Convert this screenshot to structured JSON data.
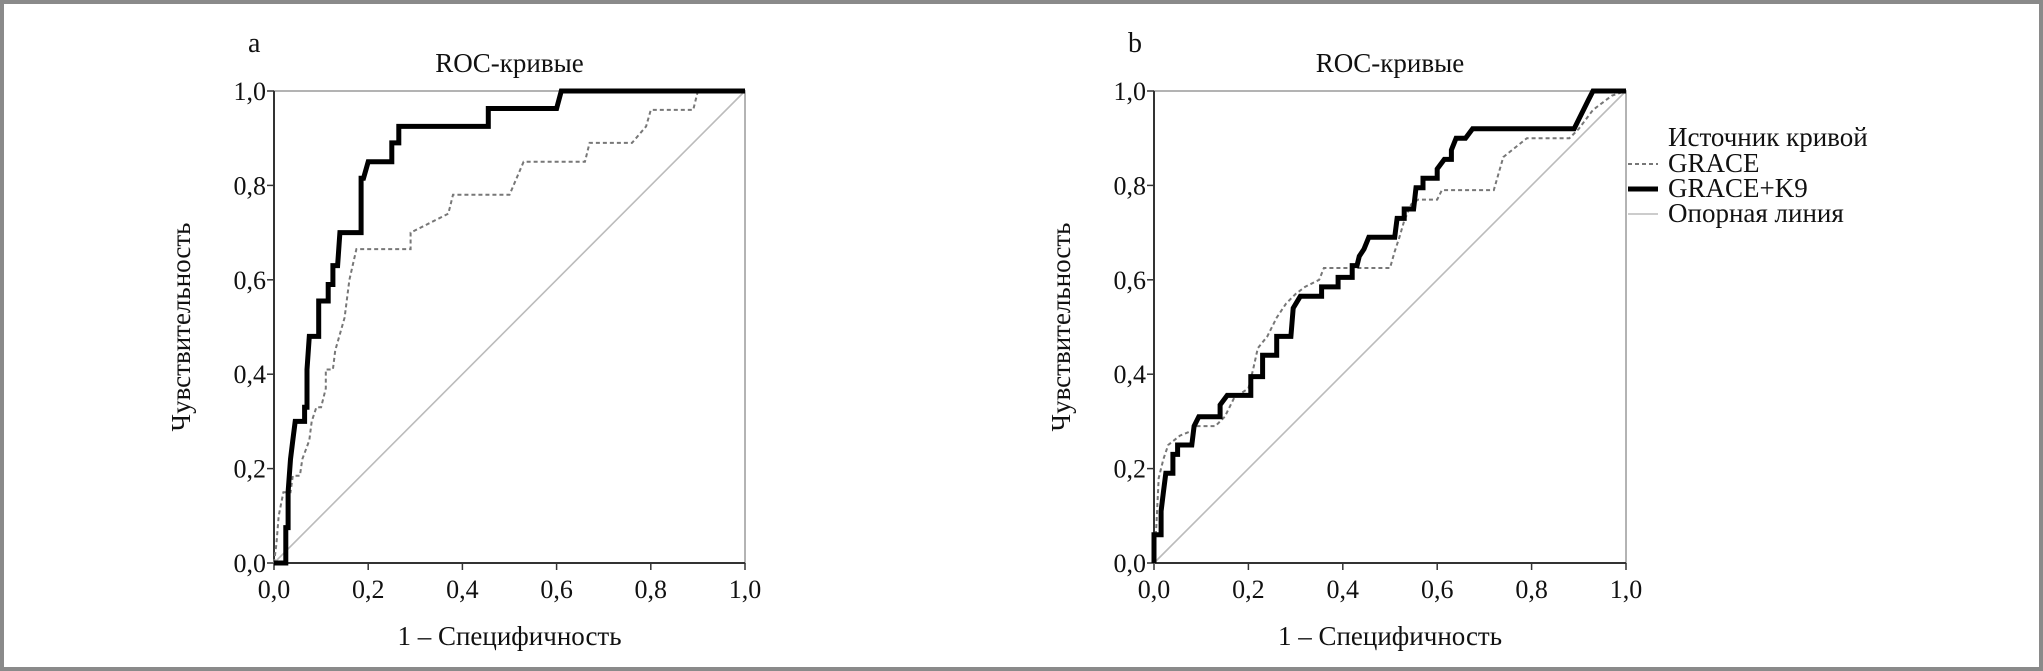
{
  "chart_data": [
    {
      "panel_label": "a",
      "type": "line",
      "title": "ROC-кривые",
      "xlabel": "1 – Специфичность",
      "ylabel": "Чувствительность",
      "xlim": [
        0,
        1
      ],
      "ylim": [
        0,
        1
      ],
      "xticks": [
        "0,0",
        "0,2",
        "0,4",
        "0,6",
        "0,8",
        "1,0"
      ],
      "yticks": [
        "0,0",
        "0,2",
        "0,4",
        "0,6",
        "0,8",
        "1,0"
      ],
      "grid": false,
      "series": [
        {
          "name": "GRACE",
          "style": "dashed",
          "color": "#777777",
          "points": [
            [
              0,
              0
            ],
            [
              0.005,
              0.04
            ],
            [
              0.01,
              0.1
            ],
            [
              0.02,
              0.15
            ],
            [
              0.035,
              0.15
            ],
            [
              0.04,
              0.185
            ],
            [
              0.055,
              0.185
            ],
            [
              0.06,
              0.22
            ],
            [
              0.075,
              0.26
            ],
            [
              0.08,
              0.3
            ],
            [
              0.09,
              0.33
            ],
            [
              0.1,
              0.33
            ],
            [
              0.11,
              0.37
            ],
            [
              0.11,
              0.41
            ],
            [
              0.125,
              0.41
            ],
            [
              0.13,
              0.45
            ],
            [
              0.15,
              0.52
            ],
            [
              0.16,
              0.6
            ],
            [
              0.175,
              0.665
            ],
            [
              0.29,
              0.665
            ],
            [
              0.29,
              0.7
            ],
            [
              0.33,
              0.72
            ],
            [
              0.37,
              0.74
            ],
            [
              0.38,
              0.78
            ],
            [
              0.5,
              0.78
            ],
            [
              0.53,
              0.85
            ],
            [
              0.66,
              0.85
            ],
            [
              0.67,
              0.89
            ],
            [
              0.76,
              0.89
            ],
            [
              0.79,
              0.925
            ],
            [
              0.8,
              0.96
            ],
            [
              0.89,
              0.96
            ],
            [
              0.9,
              1
            ],
            [
              1,
              1
            ]
          ]
        },
        {
          "name": "GRACE+K9",
          "style": "solid-thick",
          "color": "#000000",
          "points": [
            [
              0,
              0
            ],
            [
              0.025,
              0
            ],
            [
              0.025,
              0.075
            ],
            [
              0.03,
              0.075
            ],
            [
              0.03,
              0.15
            ],
            [
              0.035,
              0.22
            ],
            [
              0.04,
              0.26
            ],
            [
              0.045,
              0.3
            ],
            [
              0.065,
              0.3
            ],
            [
              0.065,
              0.33
            ],
            [
              0.07,
              0.33
            ],
            [
              0.07,
              0.41
            ],
            [
              0.075,
              0.48
            ],
            [
              0.095,
              0.48
            ],
            [
              0.095,
              0.555
            ],
            [
              0.115,
              0.555
            ],
            [
              0.115,
              0.59
            ],
            [
              0.125,
              0.59
            ],
            [
              0.125,
              0.63
            ],
            [
              0.135,
              0.63
            ],
            [
              0.14,
              0.7
            ],
            [
              0.185,
              0.7
            ],
            [
              0.185,
              0.815
            ],
            [
              0.19,
              0.815
            ],
            [
              0.2,
              0.85
            ],
            [
              0.25,
              0.85
            ],
            [
              0.25,
              0.89
            ],
            [
              0.265,
              0.89
            ],
            [
              0.265,
              0.925
            ],
            [
              0.455,
              0.925
            ],
            [
              0.455,
              0.963
            ],
            [
              0.6,
              0.963
            ],
            [
              0.61,
              1
            ],
            [
              1,
              1
            ]
          ]
        },
        {
          "name": "Опорная линия",
          "style": "solid-thin",
          "color": "#bbbbbb",
          "points": [
            [
              0,
              0
            ],
            [
              1,
              1
            ]
          ]
        }
      ]
    },
    {
      "panel_label": "b",
      "type": "line",
      "title": "ROC-кривые",
      "xlabel": "1 – Специфичность",
      "ylabel": "Чувствительность",
      "xlim": [
        0,
        1
      ],
      "ylim": [
        0,
        1
      ],
      "xticks": [
        "0,0",
        "0,2",
        "0,4",
        "0,6",
        "0,8",
        "1,0"
      ],
      "yticks": [
        "0,0",
        "0,2",
        "0,4",
        "0,6",
        "0,8",
        "1,0"
      ],
      "grid": false,
      "legend": {
        "title": "Источник кривой",
        "placement": "right"
      },
      "series": [
        {
          "name": "GRACE",
          "style": "dashed",
          "color": "#777777",
          "points": [
            [
              0,
              0
            ],
            [
              0.005,
              0.08
            ],
            [
              0.01,
              0.18
            ],
            [
              0.02,
              0.22
            ],
            [
              0.03,
              0.25
            ],
            [
              0.055,
              0.27
            ],
            [
              0.08,
              0.28
            ],
            [
              0.09,
              0.29
            ],
            [
              0.13,
              0.29
            ],
            [
              0.15,
              0.31
            ],
            [
              0.17,
              0.35
            ],
            [
              0.2,
              0.37
            ],
            [
              0.21,
              0.41
            ],
            [
              0.22,
              0.455
            ],
            [
              0.24,
              0.48
            ],
            [
              0.26,
              0.52
            ],
            [
              0.28,
              0.55
            ],
            [
              0.3,
              0.57
            ],
            [
              0.32,
              0.585
            ],
            [
              0.35,
              0.6
            ],
            [
              0.36,
              0.625
            ],
            [
              0.5,
              0.625
            ],
            [
              0.51,
              0.66
            ],
            [
              0.52,
              0.69
            ],
            [
              0.53,
              0.725
            ],
            [
              0.545,
              0.76
            ],
            [
              0.56,
              0.77
            ],
            [
              0.6,
              0.77
            ],
            [
              0.61,
              0.79
            ],
            [
              0.72,
              0.79
            ],
            [
              0.74,
              0.86
            ],
            [
              0.79,
              0.9
            ],
            [
              0.88,
              0.9
            ],
            [
              0.9,
              0.92
            ],
            [
              0.93,
              0.96
            ],
            [
              0.97,
              0.99
            ],
            [
              1,
              1
            ]
          ]
        },
        {
          "name": "GRACE+K9",
          "style": "solid-thick",
          "color": "#000000",
          "points": [
            [
              0,
              0
            ],
            [
              0,
              0.06
            ],
            [
              0.015,
              0.06
            ],
            [
              0.015,
              0.11
            ],
            [
              0.02,
              0.15
            ],
            [
              0.025,
              0.19
            ],
            [
              0.04,
              0.19
            ],
            [
              0.04,
              0.23
            ],
            [
              0.05,
              0.23
            ],
            [
              0.05,
              0.25
            ],
            [
              0.08,
              0.25
            ],
            [
              0.085,
              0.29
            ],
            [
              0.095,
              0.31
            ],
            [
              0.14,
              0.31
            ],
            [
              0.14,
              0.335
            ],
            [
              0.155,
              0.355
            ],
            [
              0.205,
              0.355
            ],
            [
              0.205,
              0.395
            ],
            [
              0.23,
              0.395
            ],
            [
              0.23,
              0.44
            ],
            [
              0.26,
              0.44
            ],
            [
              0.26,
              0.48
            ],
            [
              0.29,
              0.48
            ],
            [
              0.295,
              0.54
            ],
            [
              0.31,
              0.565
            ],
            [
              0.355,
              0.565
            ],
            [
              0.355,
              0.585
            ],
            [
              0.39,
              0.585
            ],
            [
              0.39,
              0.605
            ],
            [
              0.42,
              0.605
            ],
            [
              0.42,
              0.63
            ],
            [
              0.43,
              0.63
            ],
            [
              0.435,
              0.65
            ],
            [
              0.445,
              0.665
            ],
            [
              0.455,
              0.69
            ],
            [
              0.51,
              0.69
            ],
            [
              0.515,
              0.73
            ],
            [
              0.53,
              0.73
            ],
            [
              0.53,
              0.75
            ],
            [
              0.55,
              0.75
            ],
            [
              0.555,
              0.795
            ],
            [
              0.57,
              0.795
            ],
            [
              0.57,
              0.815
            ],
            [
              0.6,
              0.815
            ],
            [
              0.6,
              0.835
            ],
            [
              0.615,
              0.855
            ],
            [
              0.63,
              0.855
            ],
            [
              0.63,
              0.875
            ],
            [
              0.64,
              0.9
            ],
            [
              0.66,
              0.9
            ],
            [
              0.675,
              0.92
            ],
            [
              0.89,
              0.92
            ],
            [
              0.9,
              0.94
            ],
            [
              0.91,
              0.96
            ],
            [
              0.92,
              0.98
            ],
            [
              0.93,
              1
            ],
            [
              1,
              1
            ]
          ]
        },
        {
          "name": "Опорная линия",
          "style": "solid-thin",
          "color": "#bbbbbb",
          "points": [
            [
              0,
              0
            ],
            [
              1,
              1
            ]
          ]
        }
      ]
    }
  ]
}
